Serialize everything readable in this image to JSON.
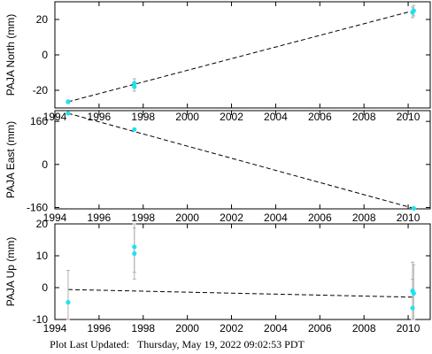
{
  "footer": {
    "label": "Plot Last Updated:",
    "timestamp": "Thursday, May 19, 2022 09:02:53 PDT"
  },
  "colors": {
    "points": "#22e0f0",
    "trend": "#000000",
    "error_bars": "#b0b0b0",
    "frame": "#000000"
  },
  "chart_data": [
    {
      "type": "scatter",
      "ylabel": "PAJA North (mm)",
      "xlim": [
        1994,
        2011
      ],
      "ylim": [
        -30,
        30
      ],
      "xticks": [
        1994,
        1996,
        1998,
        2000,
        2002,
        2004,
        2006,
        2008,
        2010
      ],
      "yticks": [
        -20,
        0,
        20
      ],
      "grid": false,
      "points": [
        {
          "x": 1994.6,
          "y": -26.5,
          "err": 1.0
        },
        {
          "x": 1997.6,
          "y": -18.0,
          "err": 2.5
        },
        {
          "x": 1997.6,
          "y": -16.0,
          "err": 2.5
        },
        {
          "x": 2010.2,
          "y": 24.0,
          "err": 3.0
        },
        {
          "x": 2010.25,
          "y": 25.0,
          "err": 3.0
        }
      ],
      "trend": {
        "x": [
          1994.6,
          2010.25
        ],
        "y": [
          -26.5,
          25.0
        ]
      }
    },
    {
      "type": "scatter",
      "ylabel": "PAJA East (mm)",
      "xlim": [
        1994,
        2011
      ],
      "ylim": [
        -165,
        200
      ],
      "xticks": [
        1994,
        1996,
        1998,
        2000,
        2002,
        2004,
        2006,
        2008,
        2010
      ],
      "yticks": [
        -160,
        0,
        160
      ],
      "grid": false,
      "points": [
        {
          "x": 1994.6,
          "y": 190.0,
          "err": 2.0
        },
        {
          "x": 1997.6,
          "y": 130.0,
          "err": 3.0
        },
        {
          "x": 2010.25,
          "y": -163.0,
          "err": 3.0
        }
      ],
      "trend": {
        "x": [
          1994.6,
          2010.25
        ],
        "y": [
          190.0,
          -163.0
        ]
      }
    },
    {
      "type": "scatter",
      "ylabel": "PAJA Up (mm)",
      "xlim": [
        1994,
        2011
      ],
      "ylim": [
        -10,
        20
      ],
      "xticks": [
        1994,
        1996,
        1998,
        2000,
        2002,
        2004,
        2006,
        2008,
        2010
      ],
      "yticks": [
        -10,
        0,
        10,
        20
      ],
      "grid": false,
      "points": [
        {
          "x": 1994.6,
          "y": -4.6,
          "err": 10.0
        },
        {
          "x": 1997.6,
          "y": 10.7,
          "err": 8.0
        },
        {
          "x": 1997.6,
          "y": 12.8,
          "err": 8.0
        },
        {
          "x": 2010.2,
          "y": -1.0,
          "err": 9.0
        },
        {
          "x": 2010.25,
          "y": -1.8,
          "err": 9.0
        },
        {
          "x": 2010.2,
          "y": -6.4,
          "err": 9.0
        }
      ],
      "trend": {
        "x": [
          1994.6,
          2010.25
        ],
        "y": [
          -0.6,
          -3.0
        ]
      }
    }
  ]
}
